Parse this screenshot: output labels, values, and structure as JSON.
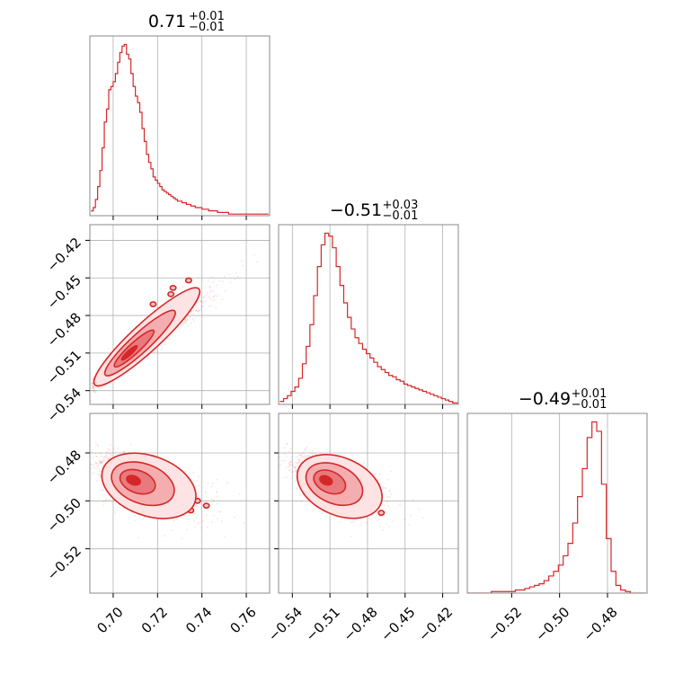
{
  "chart_data": {
    "type": "corner",
    "color": "#d62728",
    "grid": true,
    "params": [
      {
        "median": "0.71",
        "plus": "+0.01",
        "minus": "−0.01",
        "range": [
          0.6895,
          0.7705
        ]
      },
      {
        "median": "−0.51",
        "plus": "+0.03",
        "minus": "−0.01",
        "range": [
          -0.551,
          -0.4075
        ]
      },
      {
        "median": "−0.49",
        "plus": "+0.01",
        "minus": "−0.01",
        "range": [
          -0.5385,
          -0.4635
        ]
      }
    ],
    "ticks": [
      {
        "values": [
          0.7,
          0.72,
          0.74,
          0.76
        ],
        "labels": [
          "0.70",
          "0.72",
          "0.74",
          "0.76"
        ]
      },
      {
        "values": [
          -0.54,
          -0.51,
          -0.48,
          -0.45,
          -0.42
        ],
        "labels": [
          "−0.54",
          "−0.51",
          "−0.48",
          "−0.45",
          "−0.42"
        ]
      },
      {
        "values": [
          -0.52,
          -0.5,
          -0.48
        ],
        "labels": [
          "−0.52",
          "−0.50",
          "−0.48"
        ]
      }
    ],
    "histograms": [
      {
        "param": 0,
        "x": [
          0.6905,
          0.6915,
          0.6925,
          0.6935,
          0.6945,
          0.6955,
          0.6965,
          0.6975,
          0.6985,
          0.6995,
          0.7005,
          0.7015,
          0.7025,
          0.7035,
          0.7045,
          0.7055,
          0.7065,
          0.7075,
          0.7085,
          0.7095,
          0.7105,
          0.7115,
          0.7125,
          0.7135,
          0.7145,
          0.7155,
          0.7165,
          0.7175,
          0.7185,
          0.7195,
          0.7205,
          0.7215,
          0.7225,
          0.7235,
          0.7245,
          0.7255,
          0.7265,
          0.7275,
          0.7285,
          0.7295,
          0.7305,
          0.7315,
          0.7325,
          0.7335,
          0.7345,
          0.7355,
          0.7365,
          0.7375,
          0.7385,
          0.7395,
          0.7405,
          0.7415,
          0.7425,
          0.7435,
          0.7445,
          0.7455,
          0.7465,
          0.7475,
          0.7485,
          0.7495,
          0.7505,
          0.7515,
          0.7525,
          0.7535,
          0.7545,
          0.7555,
          0.7565,
          0.7575,
          0.7585,
          0.7595,
          0.7605,
          0.7615,
          0.7625,
          0.7635,
          0.7645,
          0.7655,
          0.7665,
          0.7675,
          0.7685,
          0.7695
        ],
        "y": [
          3,
          5,
          10,
          18,
          28,
          42,
          58,
          66,
          78,
          80,
          83,
          88,
          95,
          101,
          105,
          106,
          100,
          97,
          88,
          80,
          74,
          70,
          64,
          54,
          46,
          38,
          33,
          29,
          24,
          22,
          20,
          18,
          16,
          15,
          14,
          13,
          12,
          11,
          10,
          9,
          9,
          8,
          8,
          7,
          7,
          6,
          6,
          5,
          5,
          5,
          4,
          4,
          4,
          3,
          3,
          3,
          3,
          2,
          2,
          2,
          2,
          2,
          1,
          1,
          1,
          1,
          1,
          1,
          1,
          1,
          1,
          1,
          1,
          1,
          1,
          1,
          1,
          1,
          1,
          1
        ]
      },
      {
        "param": 1,
        "x": [
          -0.5485,
          -0.5455,
          -0.5425,
          -0.5395,
          -0.5365,
          -0.5335,
          -0.5305,
          -0.5275,
          -0.5245,
          -0.5215,
          -0.5185,
          -0.5155,
          -0.5125,
          -0.5095,
          -0.5065,
          -0.5035,
          -0.5005,
          -0.4975,
          -0.4945,
          -0.4915,
          -0.4885,
          -0.4855,
          -0.4825,
          -0.4795,
          -0.4765,
          -0.4735,
          -0.4705,
          -0.4675,
          -0.4645,
          -0.4615,
          -0.4585,
          -0.4555,
          -0.4525,
          -0.4495,
          -0.4465,
          -0.4435,
          -0.4405,
          -0.4375,
          -0.4345,
          -0.4315,
          -0.4285,
          -0.4255,
          -0.4225,
          -0.4195,
          -0.4165,
          -0.4135,
          -0.4105,
          -0.4085
        ],
        "y": [
          2,
          4,
          6,
          9,
          12,
          18,
          28,
          40,
          55,
          75,
          95,
          110,
          118,
          116,
          108,
          95,
          82,
          70,
          60,
          52,
          46,
          42,
          38,
          35,
          32,
          29,
          26,
          24,
          22,
          20,
          19,
          17,
          16,
          14,
          13,
          12,
          11,
          10,
          9,
          8,
          7,
          6,
          5,
          4,
          3,
          2,
          1,
          1
        ]
      },
      {
        "param": 2,
        "x": [
          -0.5375,
          -0.5355,
          -0.5335,
          -0.5315,
          -0.5295,
          -0.5275,
          -0.5255,
          -0.5235,
          -0.5215,
          -0.5195,
          -0.5175,
          -0.5155,
          -0.5135,
          -0.5115,
          -0.5095,
          -0.5075,
          -0.5055,
          -0.5035,
          -0.5015,
          -0.4995,
          -0.4975,
          -0.4955,
          -0.4935,
          -0.4915,
          -0.4895,
          -0.4875,
          -0.4855,
          -0.4835,
          -0.4815,
          -0.4795,
          -0.4775,
          -0.4755,
          -0.4735,
          -0.4715,
          -0.4695,
          -0.4675,
          -0.4655
        ],
        "y": [
          0,
          0,
          0,
          0,
          0,
          1,
          1,
          1,
          1,
          1,
          2,
          2,
          3,
          4,
          5,
          6,
          8,
          11,
          14,
          18,
          24,
          32,
          45,
          62,
          80,
          100,
          110,
          104,
          70,
          35,
          14,
          5,
          2,
          1,
          0,
          0,
          0
        ]
      }
    ],
    "pairs": [
      {
        "row": 1,
        "col": 0,
        "mean": [
          0.706,
          -0.512
        ],
        "sd": [
          0.0085,
          0.0143
        ],
        "rho": 0.97,
        "skew": 0.7,
        "stretch": 2.2,
        "islands": [
          [
            0.727,
            -0.458
          ],
          [
            0.726,
            -0.463
          ],
          [
            0.718,
            -0.471
          ],
          [
            0.734,
            -0.452
          ]
        ]
      },
      {
        "row": 2,
        "col": 0,
        "mean": [
          0.708,
          -0.491
        ],
        "sd": [
          0.0075,
          0.0046
        ],
        "rho": -0.55,
        "skew": 0.6,
        "stretch": 2.0,
        "islands": [
          [
            0.738,
            -0.5
          ],
          [
            0.742,
            -0.502
          ],
          [
            0.728,
            -0.505
          ],
          [
            0.735,
            -0.504
          ],
          [
            0.731,
            -0.496
          ]
        ]
      },
      {
        "row": 2,
        "col": 1,
        "mean": [
          -0.515,
          -0.491
        ],
        "sd": [
          0.0118,
          0.0046
        ],
        "rho": -0.6,
        "skew": 0.6,
        "stretch": 2.0,
        "islands": [
          [
            -0.473,
            -0.5
          ],
          [
            -0.469,
            -0.505
          ],
          [
            -0.476,
            -0.497
          ],
          [
            -0.481,
            -0.502
          ]
        ]
      }
    ]
  }
}
